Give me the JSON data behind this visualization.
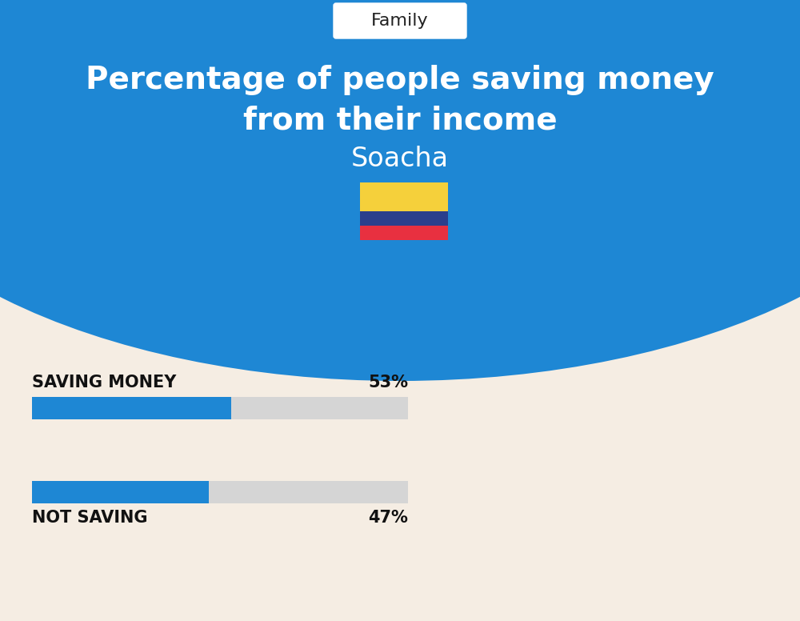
{
  "title_line1": "Percentage of people saving money",
  "title_line2": "from their income",
  "subtitle": "Soacha",
  "category_label": "Family",
  "background_top": "#1e87d4",
  "background_bottom": "#f5ede3",
  "bar1_label": "SAVING MONEY",
  "bar1_value": 53,
  "bar1_pct": "53%",
  "bar2_label": "NOT SAVING",
  "bar2_value": 47,
  "bar2_pct": "47%",
  "bar_color": "#1e87d4",
  "bar_bg_color": "#d5d5d5",
  "title_color": "#ffffff",
  "subtitle_color": "#ffffff",
  "label_color": "#111111",
  "flag_yellow": "#f5d03b",
  "flag_blue": "#2b3f8c",
  "flag_red": "#e83040",
  "fig_width": 10.0,
  "fig_height": 7.76
}
